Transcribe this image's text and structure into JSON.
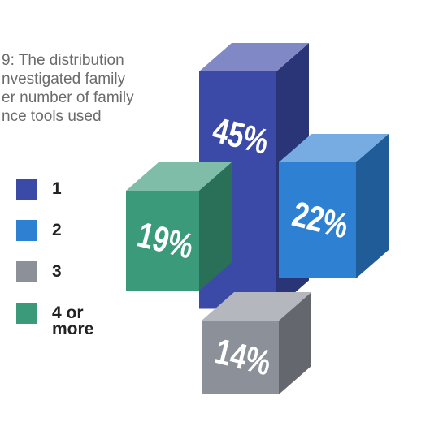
{
  "chart_data": {
    "type": "bar3d",
    "title_lines": [
      "9: The distribution",
      "nvestigated family",
      "er number of family",
      "nce tools used"
    ],
    "categories": [
      "1",
      "2",
      "3",
      "4 or more"
    ],
    "values": [
      45,
      22,
      14,
      19
    ],
    "value_labels": [
      "45%",
      "22%",
      "14%",
      "19%"
    ],
    "colors": [
      "#3b4aa6",
      "#2d80d2",
      "#8b9099",
      "#3a9a7a"
    ]
  }
}
